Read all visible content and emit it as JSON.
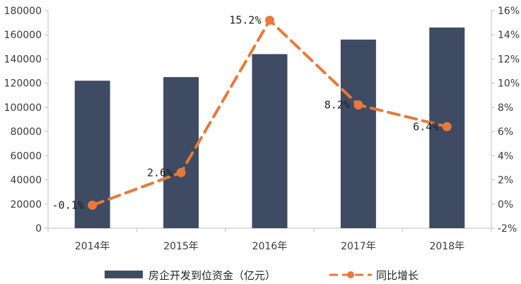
{
  "chart_data": {
    "type": "bar+line",
    "categories": [
      "2014年",
      "2015年",
      "2016年",
      "2017年",
      "2018年"
    ],
    "series": [
      {
        "name": "房企开发到位资金（亿元）",
        "type": "bar",
        "axis": "left",
        "values": [
          122000,
          125000,
          144000,
          156000,
          166000
        ]
      },
      {
        "name": "同比增长",
        "type": "line",
        "axis": "right",
        "values": [
          -0.1,
          2.6,
          15.2,
          8.2,
          6.4
        ],
        "data_labels": [
          "-0.1%",
          "2.6%",
          "15.2%",
          "8.2%",
          "6.4%"
        ]
      }
    ],
    "y_left": {
      "lim": [
        0,
        180000
      ],
      "ticks": [
        0,
        20000,
        40000,
        60000,
        80000,
        100000,
        120000,
        140000,
        160000,
        180000
      ]
    },
    "y_right": {
      "lim": [
        -2,
        16
      ],
      "ticks": [
        -2,
        0,
        2,
        4,
        6,
        8,
        10,
        12,
        14,
        16
      ],
      "tick_labels": [
        "-2%",
        "0%",
        "2%",
        "4%",
        "6%",
        "8%",
        "10%",
        "12%",
        "14%",
        "16%"
      ]
    },
    "grid": false,
    "legend": "bottom",
    "colors": {
      "bar": "#3e4b63",
      "line": "#e8793a",
      "axis": "#bfbfbf"
    }
  }
}
